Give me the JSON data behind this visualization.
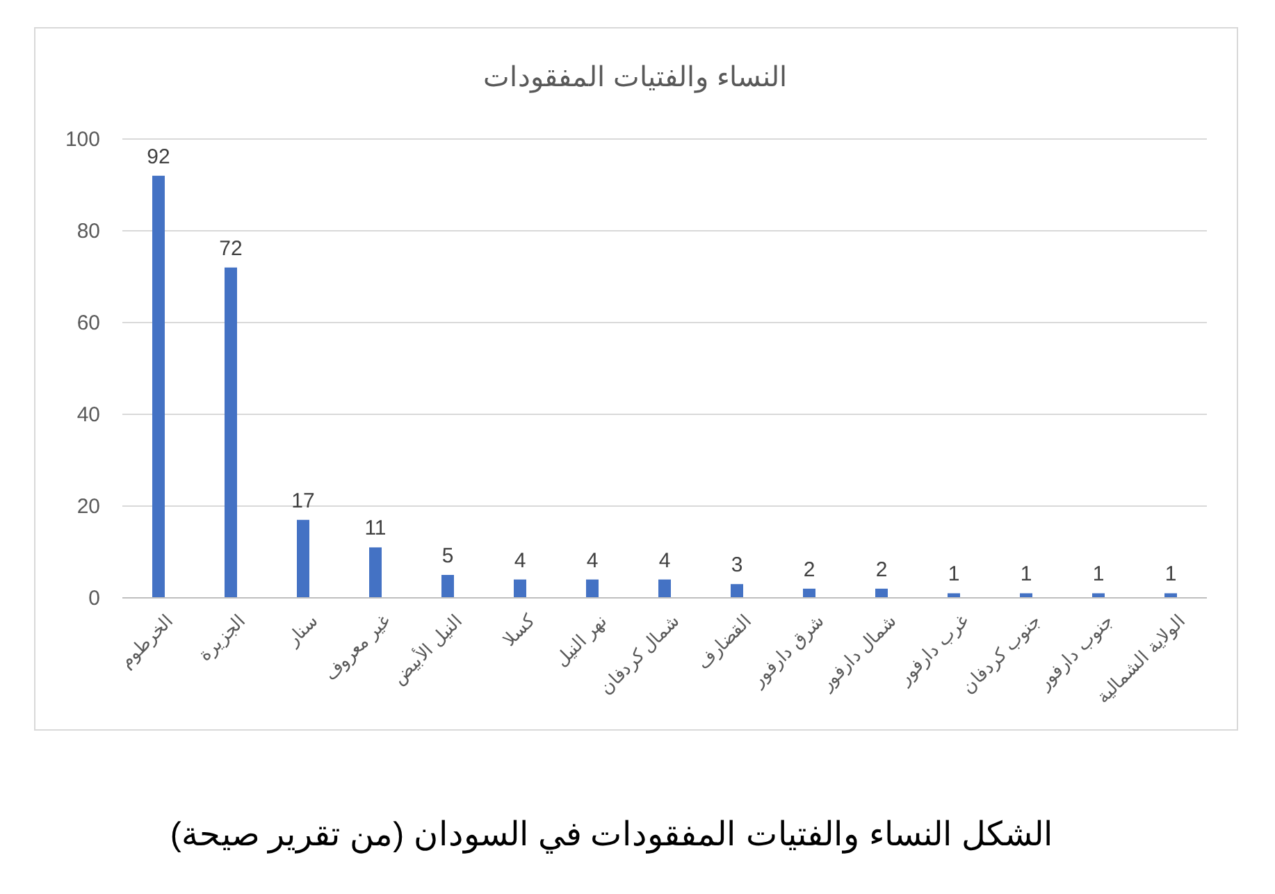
{
  "chart_data": {
    "type": "bar",
    "title": "النساء والفتيات المفقودات",
    "categories": [
      "الخرطوم",
      "الجزيرة",
      "سنار",
      "غير معروف",
      "النيل الأبيض",
      "كسلا",
      "نهر النيل",
      "شمال كردفان",
      "القضارف",
      "شرق دارفور",
      "شمال دارفور",
      "غرب دارفور",
      "جنوب كردفان",
      "جنوب دارفور",
      "الولاية الشمالية"
    ],
    "values": [
      92,
      72,
      17,
      11,
      5,
      4,
      4,
      4,
      3,
      2,
      2,
      1,
      1,
      1,
      1
    ],
    "color": "#4472c4",
    "ylim": [
      0,
      100
    ],
    "yticks": [
      0,
      20,
      40,
      60,
      80,
      100
    ],
    "grid": "y",
    "data_labels": true,
    "annotations": [
      "الشكل النساء والفتيات المفقودات في السودان (من تقرير صيحة)"
    ]
  }
}
